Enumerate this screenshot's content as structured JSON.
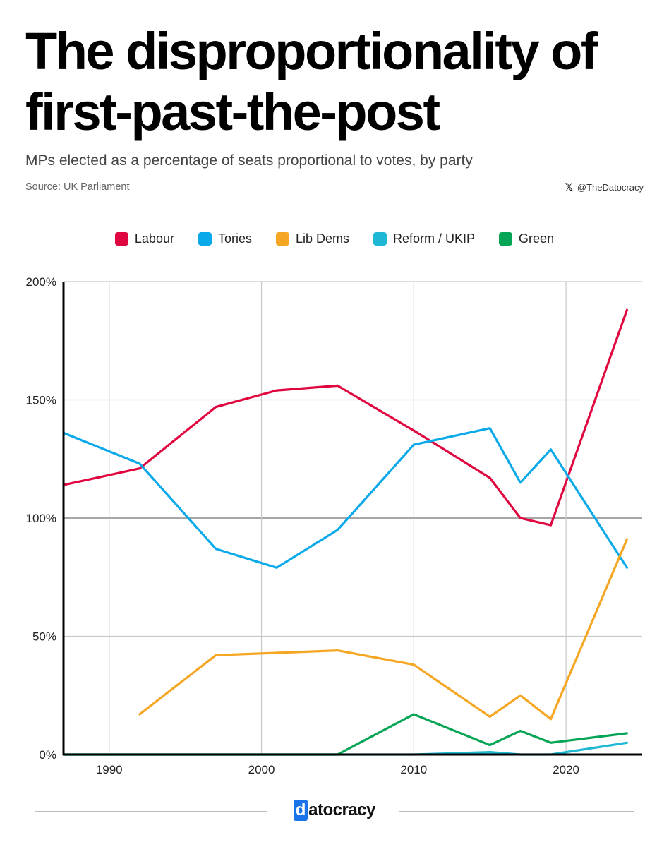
{
  "title": "The disproportionality of first-past-the-post",
  "subtitle": "MPs elected as a percentage of seats proportional to votes, by party",
  "source": "Source: UK Parliament",
  "handle": "@TheDatocracy",
  "logo": {
    "mark": "d",
    "text": "atocracy"
  },
  "colors": {
    "Labour": "#e0063f",
    "Tories": "#0aa9ea",
    "Lib Dems": "#f5a623",
    "Reform / UKIP": "#1fb8d4",
    "Green": "#05a555"
  },
  "chart_data": {
    "type": "line",
    "title": "The disproportionality of first-past-the-post",
    "subtitle": "MPs elected as a percentage of seats proportional to votes, by party",
    "xlabel": "",
    "ylabel": "",
    "xlim": [
      1987,
      2025
    ],
    "ylim": [
      0,
      200
    ],
    "x_ticks": [
      1990,
      2000,
      2010,
      2020
    ],
    "y_ticks": [
      0,
      50,
      100,
      150,
      200
    ],
    "y_tick_labels": [
      "0%",
      "50%",
      "100%",
      "150%",
      "200%"
    ],
    "grid": true,
    "legend": "top",
    "series": [
      {
        "name": "Labour",
        "x": [
          1987,
          1992,
          1997,
          2001,
          2005,
          2010,
          2015,
          2017,
          2019,
          2024
        ],
        "values": [
          114,
          121,
          147,
          154,
          156,
          137,
          117,
          100,
          97,
          188
        ]
      },
      {
        "name": "Tories",
        "x": [
          1987,
          1992,
          1997,
          2001,
          2005,
          2010,
          2015,
          2017,
          2019,
          2024
        ],
        "values": [
          136,
          123,
          87,
          79,
          95,
          131,
          138,
          115,
          129,
          79
        ]
      },
      {
        "name": "Lib Dems",
        "x": [
          1992,
          1997,
          2001,
          2005,
          2010,
          2015,
          2017,
          2019,
          2024
        ],
        "values": [
          17,
          42,
          43,
          44,
          38,
          16,
          25,
          15,
          91
        ]
      },
      {
        "name": "Reform / UKIP",
        "x": [
          1987,
          1992,
          1997,
          2001,
          2005,
          2010,
          2015,
          2017,
          2019,
          2024
        ],
        "values": [
          0,
          0,
          0,
          0,
          0,
          0,
          1,
          0,
          0,
          5
        ]
      },
      {
        "name": "Green",
        "x": [
          1987,
          1992,
          1997,
          2001,
          2005,
          2010,
          2015,
          2017,
          2019,
          2024
        ],
        "values": [
          0,
          0,
          0,
          0,
          0,
          17,
          4,
          10,
          5,
          9
        ]
      }
    ]
  }
}
